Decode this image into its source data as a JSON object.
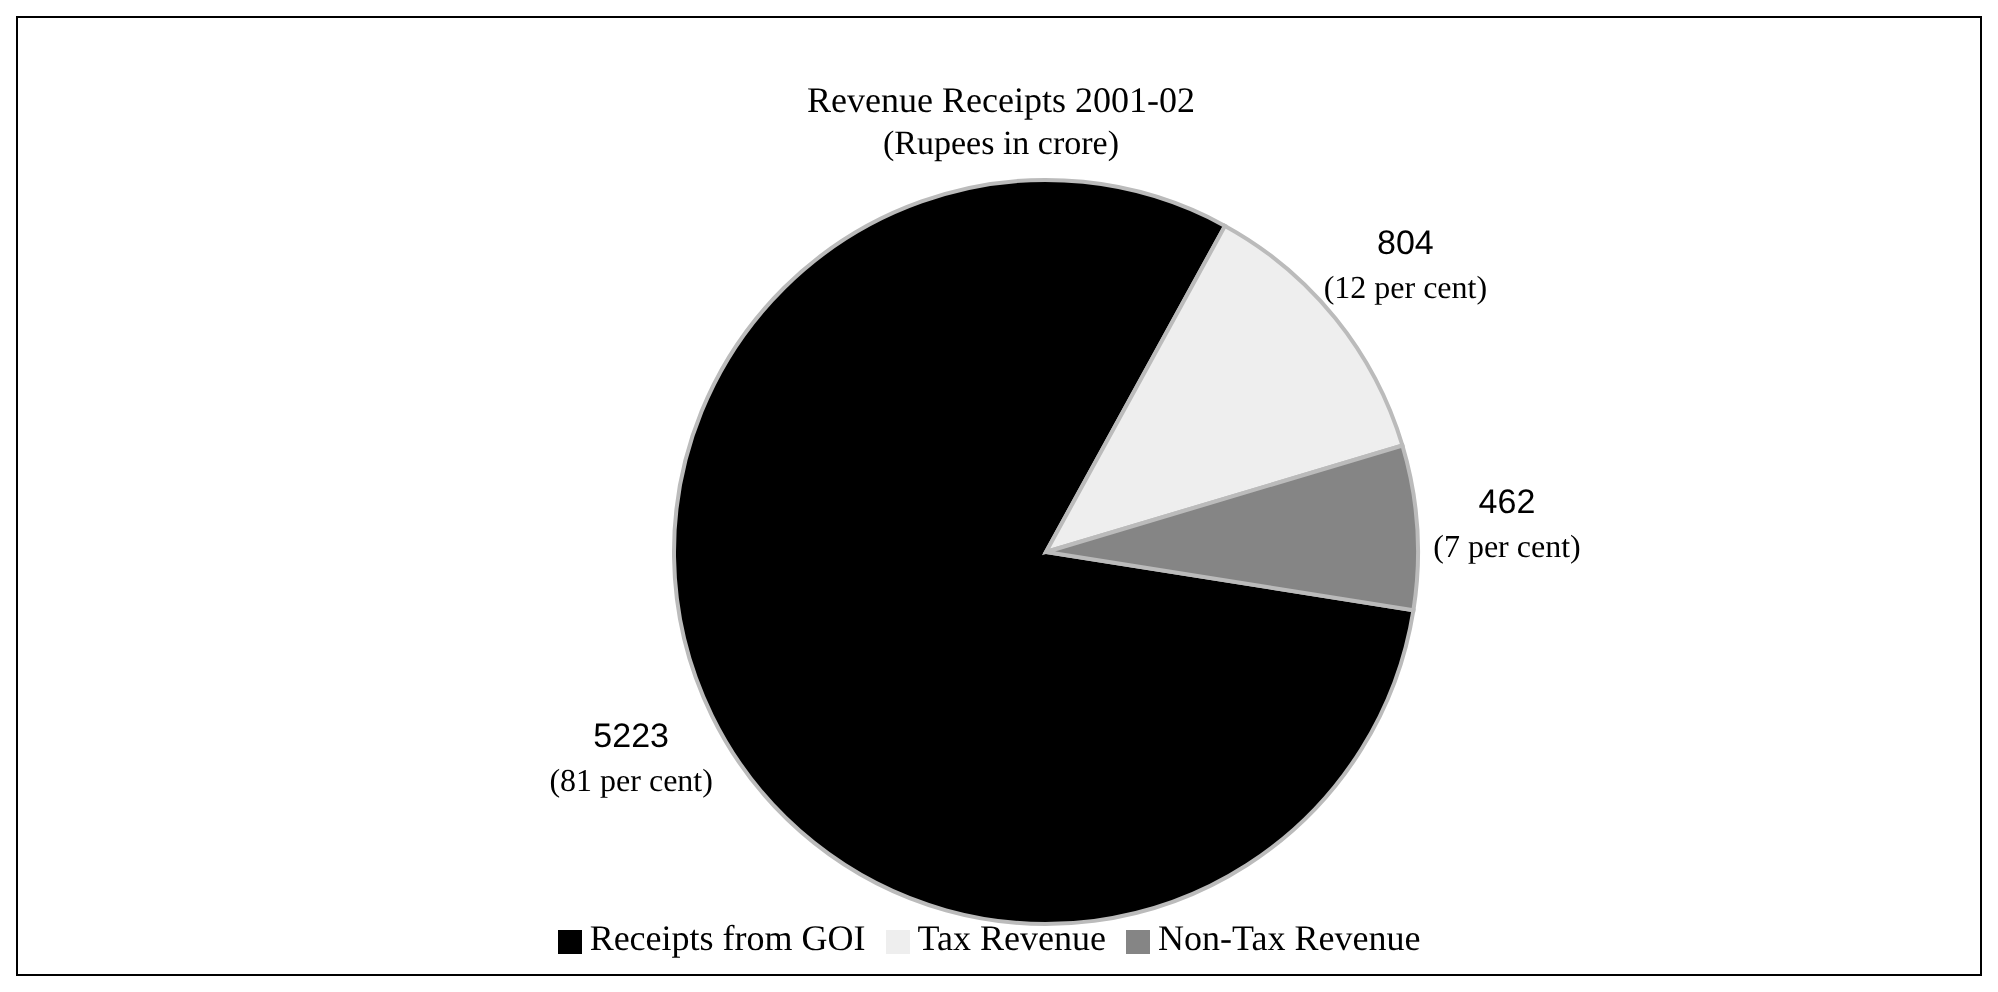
{
  "chart_data": {
    "type": "pie",
    "title": "Revenue Receipts 2001-02",
    "subtitle": "(Rupees in crore)",
    "categories": [
      "Receipts from GOI",
      "Tax Revenue",
      "Non-Tax Revenue"
    ],
    "values": [
      5223,
      804,
      462
    ],
    "colors": [
      "#000000",
      "#eeeeee",
      "#858585"
    ],
    "value_labels": [
      "5223\n(81 per cent)",
      "804\n(12 per cent)",
      "462\n(7 per cent)"
    ],
    "legend": "bottom"
  }
}
